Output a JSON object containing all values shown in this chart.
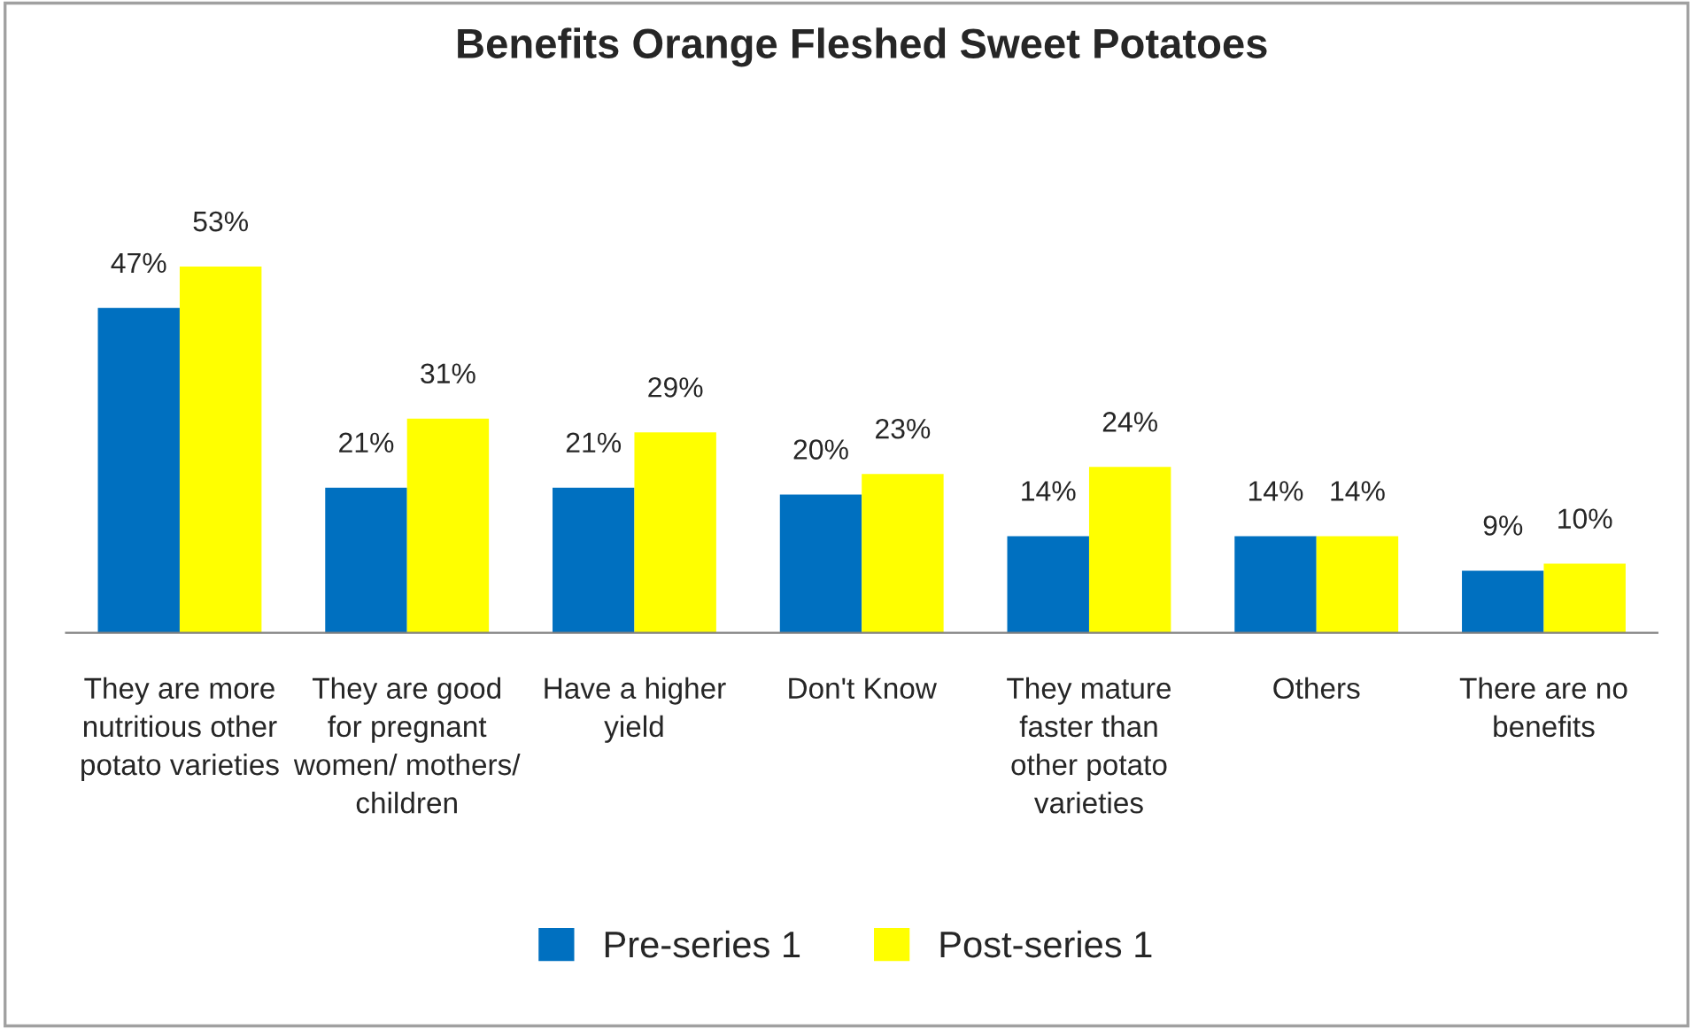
{
  "chart_data": {
    "type": "bar",
    "title": "Benefits Orange Fleshed Sweet Potatoes",
    "categories": [
      "They are more nutritious other potato varieties",
      "They are good for pregnant women/ mothers/ children",
      "Have a higher yield",
      "Don't Know",
      "They mature faster than other potato varieties",
      "Others",
      "There are no benefits"
    ],
    "series": [
      {
        "name": "Pre-series 1",
        "color": "#0070c0",
        "values": [
          47,
          21,
          21,
          20,
          14,
          14,
          9
        ],
        "value_labels": [
          "47%",
          "21%",
          "21%",
          "20%",
          "14%",
          "14%",
          "9%"
        ]
      },
      {
        "name": "Post-series 1",
        "color": "#ffff00",
        "values": [
          53,
          31,
          29,
          23,
          24,
          14,
          10
        ],
        "value_labels": [
          "53%",
          "31%",
          "29%",
          "23%",
          "24%",
          "14%",
          "10%"
        ]
      }
    ],
    "legend": "bottom",
    "grid": false,
    "tick_labels": "x"
  }
}
